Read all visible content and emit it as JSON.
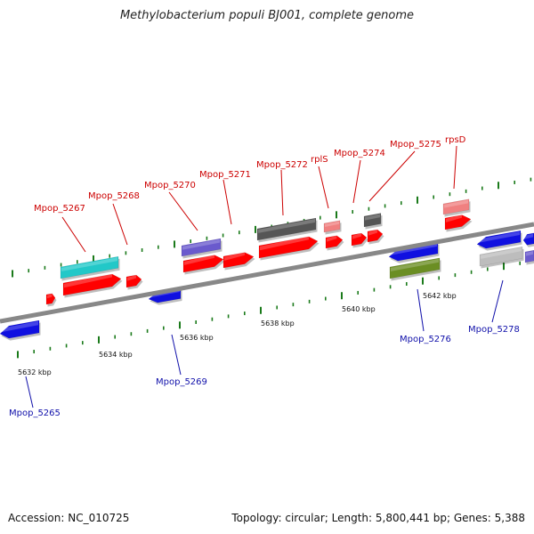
{
  "title": "Methylobacterium populi BJ001, complete genome",
  "footer": {
    "accession": "Accession: NC_010725",
    "topology": "Topology: circular; Length: 5,800,441 bp; Genes: 5,388"
  },
  "colors": {
    "red": "#ff0000",
    "blue": "#1010e0",
    "cyan": "#22c8c8",
    "purple": "#6a5acd",
    "darkgray": "#555555",
    "pink": "#f08080",
    "olive": "#6b8e23",
    "lightgray": "#bdbdbd",
    "label_red": "#cc0000",
    "label_blue": "#1010aa",
    "backbone": "#888888",
    "tick": "#1a7a1a"
  },
  "axis": {
    "kbp_ticks": [
      "5632 kbp",
      "5634 kbp",
      "5636 kbp",
      "5638 kbp",
      "5640 kbp",
      "5642 kbp"
    ]
  },
  "genes": [
    {
      "label": "Mpop_5265",
      "strand": "-",
      "color": "blue"
    },
    {
      "label": "Mpop_5267",
      "strand": "+",
      "color": "cyan"
    },
    {
      "label": "Mpop_5268",
      "strand": "+",
      "color": "red"
    },
    {
      "label": "Mpop_5269",
      "strand": "-",
      "color": "blue"
    },
    {
      "label": "Mpop_5270",
      "strand": "+",
      "color": "purple"
    },
    {
      "label": "Mpop_5271",
      "strand": "+",
      "color": "red"
    },
    {
      "label": "Mpop_5272",
      "strand": "+",
      "color": "darkgray"
    },
    {
      "label": "rplS",
      "strand": "+",
      "color": "pink"
    },
    {
      "label": "Mpop_5274",
      "strand": "+",
      "color": "red"
    },
    {
      "label": "Mpop_5275",
      "strand": "+",
      "color": "darkgray"
    },
    {
      "label": "rpsD",
      "strand": "+",
      "color": "pink"
    },
    {
      "label": "Mpop_5276",
      "strand": "-",
      "color": "blue"
    },
    {
      "label": "Mpop_5278",
      "strand": "-",
      "color": "lightgray"
    }
  ]
}
